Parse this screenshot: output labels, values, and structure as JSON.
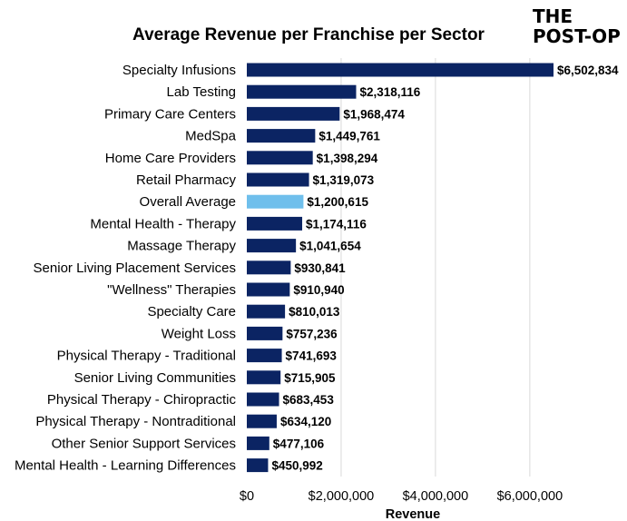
{
  "chart_data": {
    "type": "bar",
    "orientation": "horizontal",
    "title": "Average Revenue per Franchise per Sector",
    "xlabel": "Revenue",
    "ylabel": "",
    "xlim": [
      0,
      6502834
    ],
    "xticks": [
      0,
      2000000,
      4000000,
      6000000
    ],
    "xtick_labels": [
      "$0",
      "$2,000,000",
      "$4,000,000",
      "$6,000,000"
    ],
    "grid": "vertical",
    "legend": "none",
    "categories": [
      "Specialty Infusions",
      "Lab Testing",
      "Primary Care Centers",
      "MedSpa",
      "Home Care Providers",
      "Retail Pharmacy",
      "Overall Average",
      "Mental Health - Therapy",
      "Massage Therapy",
      "Senior Living Placement Services",
      "\"Wellness\" Therapies",
      "Specialty Care",
      "Weight Loss",
      "Physical Therapy - Traditional",
      "Senior Living Communities",
      "Physical Therapy - Chiropractic",
      "Physical Therapy - Nontraditional",
      "Other Senior Support Services",
      "Mental Health - Learning Differences"
    ],
    "values": [
      6502834,
      2318116,
      1968474,
      1449761,
      1398294,
      1319073,
      1200615,
      1174116,
      1041654,
      930841,
      910940,
      810013,
      757236,
      741693,
      715905,
      683453,
      634120,
      477106,
      450992
    ],
    "value_labels": [
      "$6,502,834",
      "$2,318,116",
      "$1,968,474",
      "$1,449,761",
      "$1,398,294",
      "$1,319,073",
      "$1,200,615",
      "$1,174,116",
      "$1,041,654",
      "$930,841",
      "$910,940",
      "$810,013",
      "$757,236",
      "$741,693",
      "$715,905",
      "$683,453",
      "$634,120",
      "$477,106",
      "$450,992"
    ],
    "highlight_category": "Overall Average",
    "colors": {
      "bar": "#0b2463",
      "highlight": "#6fbfec"
    }
  },
  "logo": {
    "line1": "THE",
    "line2": "POST-OP"
  }
}
